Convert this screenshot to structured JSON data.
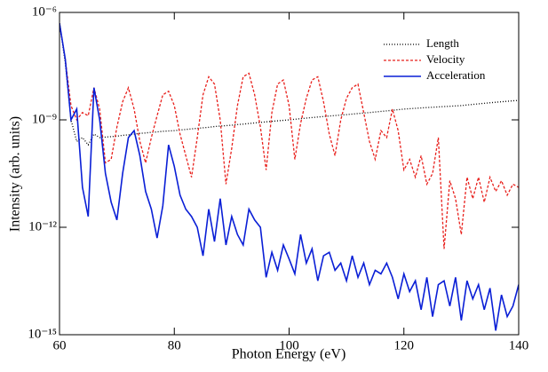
{
  "chart_data": {
    "type": "line",
    "xlabel": "Photon Energy (eV)",
    "ylabel": "Intensity (arb. units)",
    "log_y": true,
    "legend": "upper right",
    "xlim": [
      60,
      140
    ],
    "xticks": [
      60,
      80,
      100,
      120,
      140
    ],
    "ylim": [
      1e-15,
      1e-06
    ],
    "yticks": [
      {
        "value": 1e-15,
        "label": "10⁻¹⁵"
      },
      {
        "value": 1e-12,
        "label": "10⁻¹²"
      },
      {
        "value": 1e-09,
        "label": "10⁻⁹"
      },
      {
        "value": 1e-06,
        "label": "10⁻⁶"
      }
    ],
    "x": [
      60,
      61,
      62,
      63,
      64,
      65,
      66,
      67,
      68,
      69,
      70,
      71,
      72,
      73,
      74,
      75,
      76,
      77,
      78,
      79,
      80,
      81,
      82,
      83,
      84,
      85,
      86,
      87,
      88,
      89,
      90,
      91,
      92,
      93,
      94,
      95,
      96,
      97,
      98,
      99,
      100,
      101,
      102,
      103,
      104,
      105,
      106,
      107,
      108,
      109,
      110,
      111,
      112,
      113,
      114,
      115,
      116,
      117,
      118,
      119,
      120,
      121,
      122,
      123,
      124,
      125,
      126,
      127,
      128,
      129,
      130,
      131,
      132,
      133,
      134,
      135,
      136,
      137,
      138,
      139,
      140
    ],
    "series": [
      {
        "name": "Length",
        "color": "#000000",
        "style": "dotted",
        "values": [
          5e-07,
          4e-08,
          1e-09,
          2.5e-10,
          3.2e-10,
          2e-10,
          4e-10,
          3.2e-10,
          3.3e-10,
          3.4e-10,
          3.5e-10,
          3.7e-10,
          3.8e-10,
          4e-10,
          4.2e-10,
          4.3e-10,
          4.5e-10,
          4.6e-10,
          4.8e-10,
          4.9e-10,
          5e-10,
          5.2e-10,
          5.4e-10,
          5.6e-10,
          5.8e-10,
          6e-10,
          6.2e-10,
          6.5e-10,
          6.7e-10,
          6.9e-10,
          7.1e-10,
          7.4e-10,
          7.6e-10,
          7.9e-10,
          8.2e-10,
          8.5e-10,
          8.8e-10,
          9.1e-10,
          9.4e-10,
          9.7e-10,
          1e-09,
          1.04e-09,
          1.08e-09,
          1.12e-09,
          1.16e-09,
          1.2e-09,
          1.24e-09,
          1.28e-09,
          1.32e-09,
          1.36e-09,
          1.4e-09,
          1.45e-09,
          1.5e-09,
          1.55e-09,
          1.6e-09,
          1.66e-09,
          1.72e-09,
          1.78e-09,
          1.85e-09,
          1.92e-09,
          2e-09,
          2.05e-09,
          2.1e-09,
          2.15e-09,
          2.2e-09,
          2.25e-09,
          2.3e-09,
          2.35e-09,
          2.4e-09,
          2.45e-09,
          2.5e-09,
          2.6e-09,
          2.7e-09,
          2.8e-09,
          2.9e-09,
          3e-09,
          3.1e-09,
          3.2e-09,
          3.3e-09,
          3.4e-09,
          3.5e-09
        ]
      },
      {
        "name": "Velocity",
        "color": "#e8201c",
        "style": "dashed",
        "values": [
          5e-07,
          5e-08,
          2.5e-09,
          1e-09,
          1.6e-09,
          1.3e-09,
          7.9e-09,
          2e-09,
          6.3e-11,
          7.9e-11,
          6.3e-10,
          3.2e-09,
          7.9e-09,
          2e-09,
          2.5e-10,
          6.3e-11,
          3.2e-10,
          1.3e-09,
          5e-09,
          6.3e-09,
          2.5e-09,
          4e-10,
          1e-10,
          2.5e-11,
          3.2e-10,
          5e-09,
          1.6e-08,
          1e-08,
          1e-09,
          1.6e-11,
          1.6e-10,
          2.5e-09,
          1.6e-08,
          2e-08,
          5e-09,
          6.3e-10,
          4e-11,
          1.6e-09,
          1e-08,
          1.3e-08,
          2.5e-09,
          7.9e-11,
          7.9e-10,
          4e-09,
          1.3e-08,
          1.6e-08,
          3.2e-09,
          4e-10,
          1e-10,
          1e-09,
          4e-09,
          7.9e-09,
          1e-08,
          1.6e-09,
          2.5e-10,
          7.9e-11,
          5e-10,
          3.2e-10,
          2e-09,
          5e-10,
          4e-11,
          7.9e-11,
          2.5e-11,
          1e-10,
          1.6e-11,
          3.2e-11,
          3.2e-10,
          2.5e-13,
          2e-11,
          6.3e-12,
          6.3e-13,
          2.5e-11,
          6.3e-12,
          2.5e-11,
          5e-12,
          2.5e-11,
          1e-11,
          2e-11,
          7.9e-12,
          1.6e-11,
          1.3e-11
        ]
      },
      {
        "name": "Acceleration",
        "color": "#0a1fd6",
        "style": "solid",
        "values": [
          5e-07,
          5e-08,
          1e-09,
          2e-09,
          1.3e-11,
          2e-12,
          7.9e-09,
          1e-09,
          3.2e-11,
          5e-12,
          1.6e-12,
          3.2e-11,
          3.2e-10,
          5e-10,
          1e-10,
          1e-11,
          3.2e-12,
          5e-13,
          4e-12,
          2e-10,
          5e-11,
          7.9e-12,
          3.2e-12,
          2e-12,
          1e-12,
          1.6e-13,
          3.2e-12,
          4e-13,
          6.3e-12,
          3.2e-13,
          2e-12,
          6.3e-13,
          3.2e-13,
          3.2e-12,
          1.6e-12,
          1e-12,
          4e-14,
          2e-13,
          6.3e-14,
          3.2e-13,
          1.3e-13,
          5e-14,
          6.3e-13,
          1e-13,
          2.5e-13,
          3.2e-14,
          1.6e-13,
          2e-13,
          6.3e-14,
          1e-13,
          3.2e-14,
          1.6e-13,
          4e-14,
          1e-13,
          2.5e-14,
          6.3e-14,
          5e-14,
          1e-13,
          4e-14,
          1e-14,
          5e-14,
          1.6e-14,
          3.2e-14,
          5e-15,
          4e-14,
          3.2e-15,
          2.5e-14,
          3.2e-14,
          6.3e-15,
          4e-14,
          2.5e-15,
          3.2e-14,
          1e-14,
          2.5e-14,
          5e-15,
          2e-14,
          1.3e-15,
          1.3e-14,
          3.2e-15,
          6.3e-15,
          2.5e-14
        ]
      }
    ]
  }
}
